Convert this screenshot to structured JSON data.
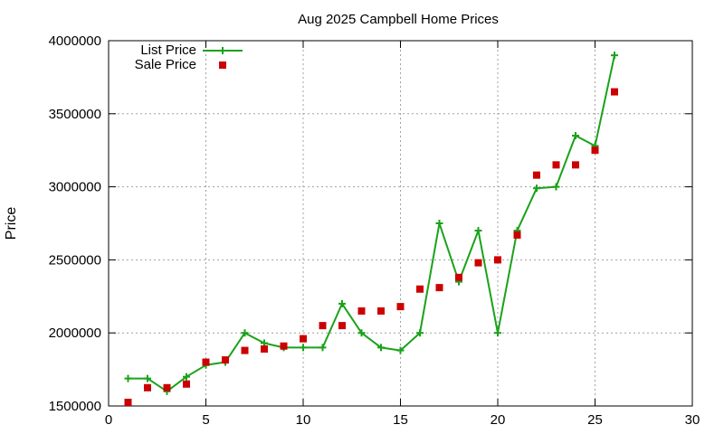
{
  "chart_data": {
    "type": "line",
    "title": "Aug 2025 Campbell Home Prices",
    "xlabel": "",
    "ylabel": "Price",
    "xlim": [
      0,
      30
    ],
    "ylim": [
      1500000,
      4000000
    ],
    "xticks": [
      0,
      5,
      10,
      15,
      20,
      25,
      30
    ],
    "yticks": [
      1500000,
      2000000,
      2500000,
      3000000,
      3500000,
      4000000
    ],
    "grid": true,
    "legend_position": "top-left",
    "series": [
      {
        "name": "List Price",
        "style": "line+cross",
        "color": "#1aa21a",
        "x": [
          1,
          2,
          3,
          4,
          5,
          6,
          7,
          8,
          9,
          10,
          11,
          12,
          13,
          14,
          15,
          16,
          17,
          18,
          19,
          20,
          21,
          22,
          23,
          24,
          25,
          26
        ],
        "y": [
          1688000,
          1688000,
          1600000,
          1700000,
          1780000,
          1800000,
          2000000,
          1930000,
          1900000,
          1900000,
          1900000,
          2200000,
          2000000,
          1900000,
          1880000,
          2000000,
          2750000,
          2350000,
          2700000,
          2000000,
          2700000,
          2990000,
          3000000,
          3350000,
          3280000,
          3900000
        ]
      },
      {
        "name": "Sale Price",
        "style": "square",
        "color": "#cc0000",
        "x": [
          1,
          2,
          3,
          4,
          5,
          6,
          7,
          8,
          9,
          10,
          11,
          12,
          13,
          14,
          15,
          16,
          17,
          18,
          19,
          20,
          21,
          22,
          23,
          24,
          25,
          26
        ],
        "y": [
          1525000,
          1625000,
          1625000,
          1650000,
          1800000,
          1815000,
          1880000,
          1890000,
          1910000,
          1960000,
          2050000,
          2050000,
          2150000,
          2150000,
          2180000,
          2300000,
          2310000,
          2380000,
          2480000,
          2500000,
          2670000,
          3080000,
          3150000,
          3150000,
          3250000,
          3650000
        ]
      }
    ]
  }
}
